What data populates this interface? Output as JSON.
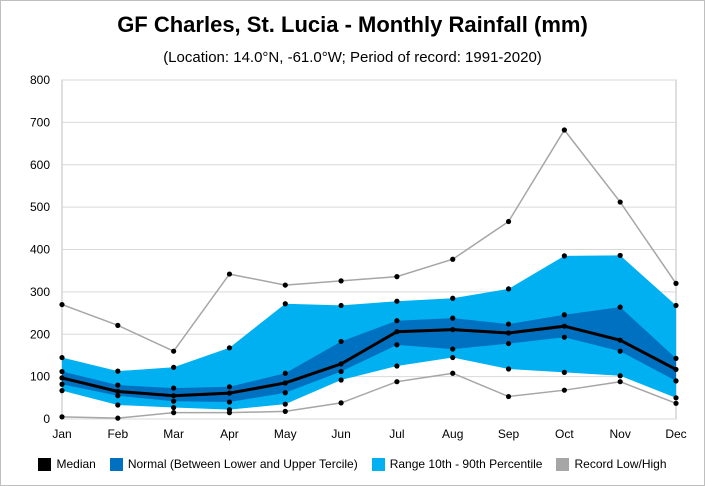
{
  "chart_data": {
    "type": "area",
    "title": "GF Charles, St. Lucia - Monthly Rainfall (mm)",
    "subtitle": "(Location: 14.0°N, -61.0°W; Period of record: 1991-2020)",
    "categories": [
      "Jan",
      "Feb",
      "Mar",
      "Apr",
      "May",
      "Jun",
      "Jul",
      "Aug",
      "Sep",
      "Oct",
      "Nov",
      "Dec"
    ],
    "ylim": [
      0,
      800
    ],
    "yticks": [
      0,
      100,
      200,
      300,
      400,
      500,
      600,
      700,
      800
    ],
    "grid": true,
    "legend_position": "bottom",
    "series": [
      {
        "name": "Record Low/High",
        "role": "record_high",
        "color": "#a6a6a6",
        "values": [
          270,
          221,
          160,
          342,
          316,
          326,
          336,
          377,
          466,
          682,
          512,
          320
        ]
      },
      {
        "name": "Record Low/High",
        "role": "record_low",
        "color": "#a6a6a6",
        "values": [
          5,
          2,
          15,
          15,
          18,
          38,
          88,
          108,
          53,
          68,
          88,
          37
        ]
      },
      {
        "name": "Range 10th - 90th Percentile",
        "role": "p90",
        "color": "#00b0f0",
        "values": [
          145,
          113,
          122,
          168,
          272,
          268,
          278,
          285,
          307,
          385,
          386,
          268
        ]
      },
      {
        "name": "Range 10th - 90th Percentile",
        "role": "p10",
        "color": "#00b0f0",
        "values": [
          67,
          33,
          27,
          22,
          35,
          92,
          125,
          145,
          118,
          110,
          102,
          50
        ]
      },
      {
        "name": "Normal (Between Lower and Upper Tercile)",
        "role": "upper_tercile",
        "color": "#0070c0",
        "values": [
          112,
          80,
          73,
          76,
          108,
          183,
          232,
          238,
          224,
          246,
          264,
          143
        ]
      },
      {
        "name": "Normal (Between Lower and Upper Tercile)",
        "role": "lower_tercile",
        "color": "#0070c0",
        "values": [
          82,
          55,
          42,
          40,
          62,
          112,
          175,
          165,
          178,
          193,
          160,
          90
        ]
      },
      {
        "name": "Median",
        "role": "median",
        "color": "#000000",
        "values": [
          97,
          65,
          55,
          61,
          85,
          130,
          206,
          211,
          203,
          219,
          186,
          117
        ]
      }
    ]
  },
  "legend": [
    {
      "label": "Median",
      "color": "#000000"
    },
    {
      "label": "Normal (Between Lower and Upper Tercile)",
      "color": "#0070c0"
    },
    {
      "label": "Range 10th - 90th Percentile",
      "color": "#00b0f0"
    },
    {
      "label": "Record Low/High",
      "color": "#a6a6a6"
    }
  ]
}
